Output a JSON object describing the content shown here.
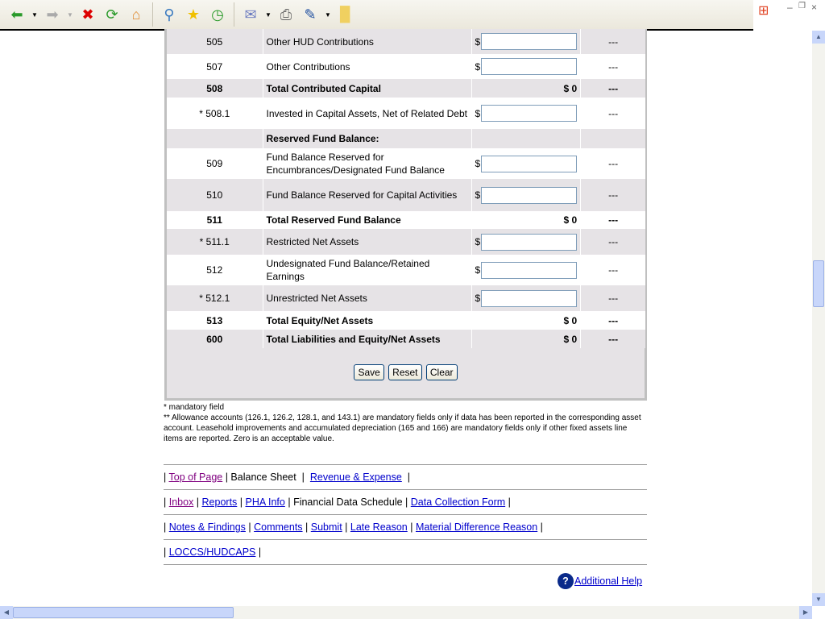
{
  "toolbar": {
    "icons": [
      "back-icon",
      "forward-icon",
      "stop-icon",
      "refresh-icon",
      "home-icon",
      "search-icon",
      "favorites-icon",
      "history-icon",
      "mail-icon",
      "print-icon",
      "edit-icon",
      "notes-icon"
    ]
  },
  "rows": [
    {
      "code": "505",
      "desc": "Other HUD Contributions",
      "type": "input",
      "dash": "---"
    },
    {
      "code": "507",
      "desc": "Other Contributions",
      "type": "input",
      "dash": "---"
    },
    {
      "code": "508",
      "desc": "Total Contributed Capital",
      "type": "total",
      "value": "$ 0",
      "dash": "---"
    },
    {
      "code": "* 508.1",
      "desc": "Invested in Capital Assets, Net of Related Debt",
      "type": "input",
      "dash": "---"
    },
    {
      "code": "",
      "desc": "Reserved Fund Balance:",
      "type": "header",
      "dash": ""
    },
    {
      "code": "509",
      "desc": "Fund Balance Reserved for Encumbrances/Designated Fund Balance",
      "type": "input",
      "dash": "---"
    },
    {
      "code": "510",
      "desc": "Fund Balance Reserved for Capital Activities",
      "type": "input",
      "dash": "---"
    },
    {
      "code": "511",
      "desc": "Total Reserved Fund Balance",
      "type": "total",
      "value": "$ 0",
      "dash": "---"
    },
    {
      "code": "* 511.1",
      "desc": "Restricted Net Assets",
      "type": "input",
      "dash": "---"
    },
    {
      "code": "512",
      "desc": "Undesignated Fund Balance/Retained Earnings",
      "type": "input",
      "dash": "---"
    },
    {
      "code": "* 512.1",
      "desc": "Unrestricted Net Assets",
      "type": "input",
      "dash": "---"
    },
    {
      "code": "513",
      "desc": "Total Equity/Net Assets",
      "type": "total",
      "value": "$ 0",
      "dash": "---"
    },
    {
      "code": "600",
      "desc": "Total Liabilities and Equity/Net Assets",
      "type": "total",
      "value": "$ 0",
      "dash": "---"
    }
  ],
  "currency": "$",
  "buttons": {
    "save": "Save",
    "reset": "Reset",
    "clear": "Clear"
  },
  "notes": {
    "mandatory": "* mandatory field",
    "allowance": "** Allowance accounts (126.1, 126.2, 128.1, and 143.1) are mandatory fields only if data has been reported in the corresponding asset account. Leasehold improvements and accumulated depreciation (165 and 166) are mandatory fields only if other fixed assets line items are reported. Zero is an acceptable value."
  },
  "nav": {
    "top_of_page": "Top of Page",
    "balance_sheet": "Balance Sheet",
    "revenue_expense": "Revenue & Expense",
    "inbox": "Inbox",
    "reports": "Reports",
    "pha_info": "PHA Info",
    "fds": "Financial Data Schedule",
    "dcf": "Data Collection Form",
    "notes_findings": "Notes & Findings",
    "comments": "Comments",
    "submit": "Submit",
    "late_reason": "Late Reason",
    "material_difference": "Material Difference Reason",
    "loccs": "LOCCS/HUDCAPS"
  },
  "help": {
    "label": "Additional Help"
  }
}
